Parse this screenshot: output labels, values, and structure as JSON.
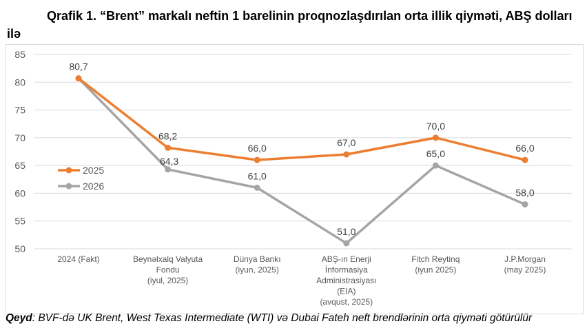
{
  "chart_data": {
    "type": "line",
    "title": "Qrafik 1. “Brent” markalı neftin 1 barelinin proqnozlaşdırılan orta illik qiyməti, ABŞ dolları ilə",
    "categories": [
      [
        "2024 (Fakt)"
      ],
      [
        "Beynəlxalq Valyuta",
        "Fondu",
        "(iyul, 2025)"
      ],
      [
        "Dünya Bankı",
        "(iyun, 2025)"
      ],
      [
        "ABŞ-ın Enerji",
        "İnformasiya",
        "Administrasiyası",
        "(EIA)",
        "(avqust, 2025)"
      ],
      [
        "Fitch Reytinq",
        "(iyun 2025)"
      ],
      [
        "J.P.Morgan",
        "(may 2025)"
      ]
    ],
    "series": [
      {
        "name": "2025",
        "color": "#ed7d31",
        "values": [
          80.7,
          68.2,
          66.0,
          67.0,
          70.0,
          66.0
        ],
        "labels": [
          "80,7",
          "68,2",
          "66,0",
          "67,0",
          "70,0",
          "66,0"
        ]
      },
      {
        "name": "2026",
        "color": "#a5a5a5",
        "values": [
          80.7,
          64.3,
          61.0,
          51.0,
          65.0,
          58.0
        ],
        "labels": [
          "",
          "64,3",
          "61,0",
          "51,0",
          "65,0",
          "58,0"
        ]
      }
    ],
    "yticks": [
      50,
      55,
      60,
      65,
      70,
      75,
      80,
      85
    ],
    "ylim": [
      50,
      85
    ],
    "grid": true,
    "legend": "left"
  },
  "note": {
    "bold": "Qeyd",
    "text": ": BVF-də UK Brent, West Texas Intermediate (WTI) və Dubai Fateh neft brendlərinin orta qiyməti götürülür"
  }
}
